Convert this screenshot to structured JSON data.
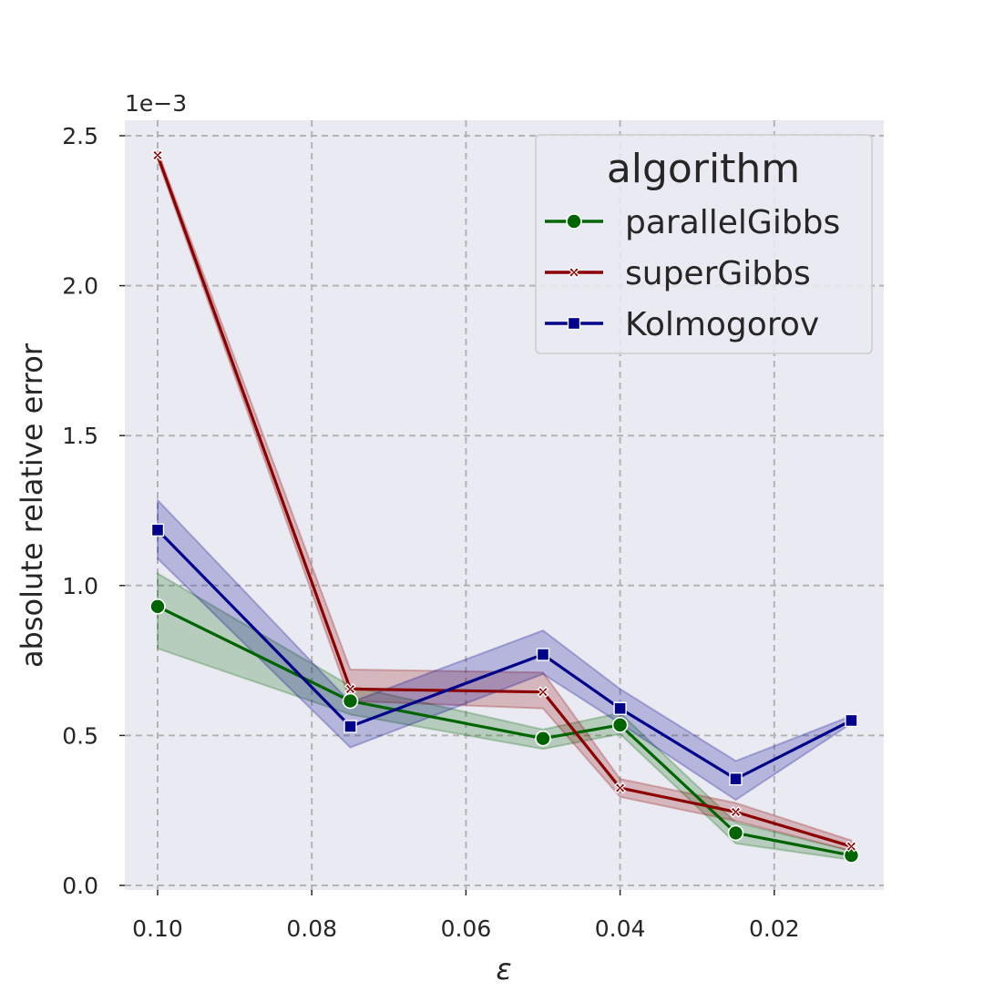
{
  "chart_data": {
    "type": "line",
    "xlabel": "ε",
    "ylabel": "absolute relative error",
    "y_scale_label": "1e−3",
    "x_reversed": true,
    "xlim": [
      0.1,
      0.01
    ],
    "ylim": [
      0,
      2.5
    ],
    "x_ticks": [
      0.1,
      0.08,
      0.06,
      0.04,
      0.02
    ],
    "x_tick_labels": [
      "0.10",
      "0.08",
      "0.06",
      "0.04",
      "0.02"
    ],
    "y_ticks": [
      0.0,
      0.5,
      1.0,
      1.5,
      2.0,
      2.5
    ],
    "y_tick_labels": [
      "0.0",
      "0.5",
      "1.0",
      "1.5",
      "2.0",
      "2.5"
    ],
    "grid": true,
    "legend": {
      "title": "algorithm",
      "placement": "top-right"
    },
    "x": [
      0.1,
      0.075,
      0.05,
      0.04,
      0.025,
      0.01
    ],
    "series": [
      {
        "name": "parallelGibbs",
        "color": "#006400",
        "marker": "circle",
        "values": [
          0.93,
          0.615,
          0.49,
          0.535,
          0.175,
          0.1
        ],
        "ci_low": [
          0.79,
          0.57,
          0.455,
          0.505,
          0.14,
          0.085
        ],
        "ci_high": [
          1.04,
          0.665,
          0.52,
          0.575,
          0.21,
          0.115
        ]
      },
      {
        "name": "superGibbs",
        "color": "#8b0000",
        "marker": "x",
        "values": [
          2.435,
          0.655,
          0.645,
          0.325,
          0.245,
          0.13
        ],
        "ci_low": [
          2.42,
          0.615,
          0.59,
          0.295,
          0.215,
          0.115
        ],
        "ci_high": [
          2.45,
          0.72,
          0.71,
          0.355,
          0.275,
          0.15
        ]
      },
      {
        "name": "Kolmogorov",
        "color": "#00008b",
        "marker": "square",
        "values": [
          1.185,
          0.53,
          0.77,
          0.59,
          0.355,
          0.55
        ],
        "ci_low": [
          1.09,
          0.46,
          0.705,
          0.54,
          0.285,
          0.54
        ],
        "ci_high": [
          1.285,
          0.61,
          0.85,
          0.655,
          0.415,
          0.565
        ]
      }
    ]
  }
}
